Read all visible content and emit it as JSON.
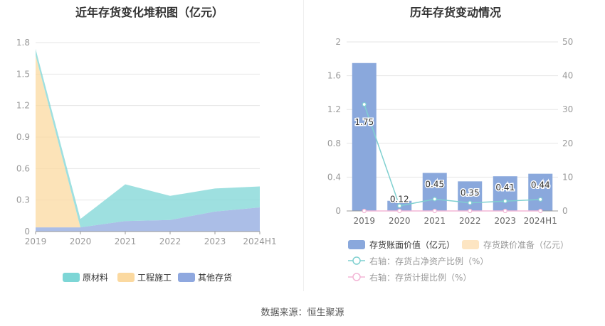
{
  "left_chart": {
    "title": "近年存货变化堆积图（亿元）",
    "legend": [
      {
        "label": "原材料",
        "color": "#7dd6d6"
      },
      {
        "label": "工程施工",
        "color": "#fbd9a0"
      },
      {
        "label": "其他存货",
        "color": "#8fa8df"
      }
    ]
  },
  "right_chart": {
    "title": "历年存货变动情况",
    "legend": [
      {
        "label": "存货账面价值（亿元）",
        "color": "#8aa8dc"
      },
      {
        "label": "存货跌价准备（亿元）",
        "color": "#fde5c2"
      },
      {
        "label": "右轴：存货占净资产比例（%）",
        "color": "#7fd0d0"
      },
      {
        "label": "右轴：存货计提比例（%）",
        "color": "#f3b6d6"
      }
    ]
  },
  "source": "数据来源：恒生聚源",
  "chart_data": [
    {
      "type": "area",
      "stacked": true,
      "title": "近年存货变化堆积图（亿元）",
      "categories": [
        "2019",
        "2020",
        "2021",
        "2022",
        "2023",
        "2024H1"
      ],
      "ylim": [
        0,
        1.8
      ],
      "yticks": [
        "0",
        "0.3",
        "0.6",
        "0.9",
        "1.2",
        "1.5",
        "1.8"
      ],
      "series": [
        {
          "name": "其他存货",
          "values": [
            0.04,
            0.04,
            0.1,
            0.11,
            0.19,
            0.23
          ]
        },
        {
          "name": "工程施工",
          "values": [
            1.64,
            0.0,
            0.0,
            0.0,
            0.0,
            0.0
          ]
        },
        {
          "name": "原材料",
          "values": [
            0.06,
            0.08,
            0.35,
            0.23,
            0.22,
            0.2
          ]
        }
      ]
    },
    {
      "type": "bar",
      "title": "历年存货变动情况",
      "categories": [
        "2019",
        "2020",
        "2021",
        "2022",
        "2023",
        "2024H1"
      ],
      "ylim": [
        0,
        2
      ],
      "yticks": [
        "0",
        "0.4",
        "0.8",
        "1.2",
        "1.6",
        "2"
      ],
      "y2lim": [
        0,
        50
      ],
      "y2ticks": [
        "0",
        "10",
        "20",
        "30",
        "40",
        "50"
      ],
      "series": [
        {
          "name": "存货账面价值（亿元）",
          "values": [
            1.75,
            0.12,
            0.45,
            0.35,
            0.41,
            0.44
          ],
          "labels": [
            "1.75",
            "0.12",
            "0.45",
            "0.35",
            "0.41",
            "0.44"
          ]
        },
        {
          "name": "存货跌价准备（亿元）",
          "values": [
            0,
            0,
            0,
            0,
            0,
            0
          ]
        },
        {
          "name": "右轴：存货占净资产比例（%）",
          "axis": "right",
          "values": [
            31.5,
            1.5,
            3.5,
            2.4,
            2.9,
            3.4
          ]
        },
        {
          "name": "右轴：存货计提比例（%）",
          "axis": "right",
          "values": [
            0,
            0,
            0,
            0,
            0,
            0
          ]
        }
      ]
    }
  ]
}
